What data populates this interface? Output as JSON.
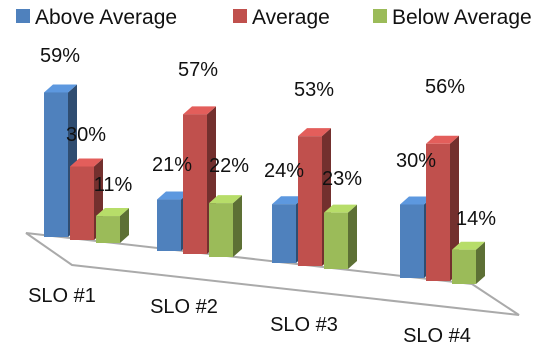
{
  "chart_data": {
    "type": "bar",
    "categories": [
      "SLO #1",
      "SLO #2",
      "SLO #3",
      "SLO #4"
    ],
    "series": [
      {
        "name": "Above Average",
        "values": [
          59,
          21,
          24,
          30
        ],
        "labels": [
          "59%",
          "21%",
          "24%",
          "30%"
        ],
        "color": "#4f81bd"
      },
      {
        "name": "Average",
        "values": [
          30,
          57,
          53,
          56
        ],
        "labels": [
          "30%",
          "57%",
          "53%",
          "56%"
        ],
        "color": "#c0504d"
      },
      {
        "name": "Below Average",
        "values": [
          11,
          22,
          23,
          14
        ],
        "labels": [
          "11%",
          "22%",
          "23%",
          "14%"
        ],
        "color": "#9bbb59"
      }
    ],
    "ylim": [
      0,
      60
    ],
    "legend_position": "top",
    "grid": false,
    "style": "3d-clustered-column"
  }
}
